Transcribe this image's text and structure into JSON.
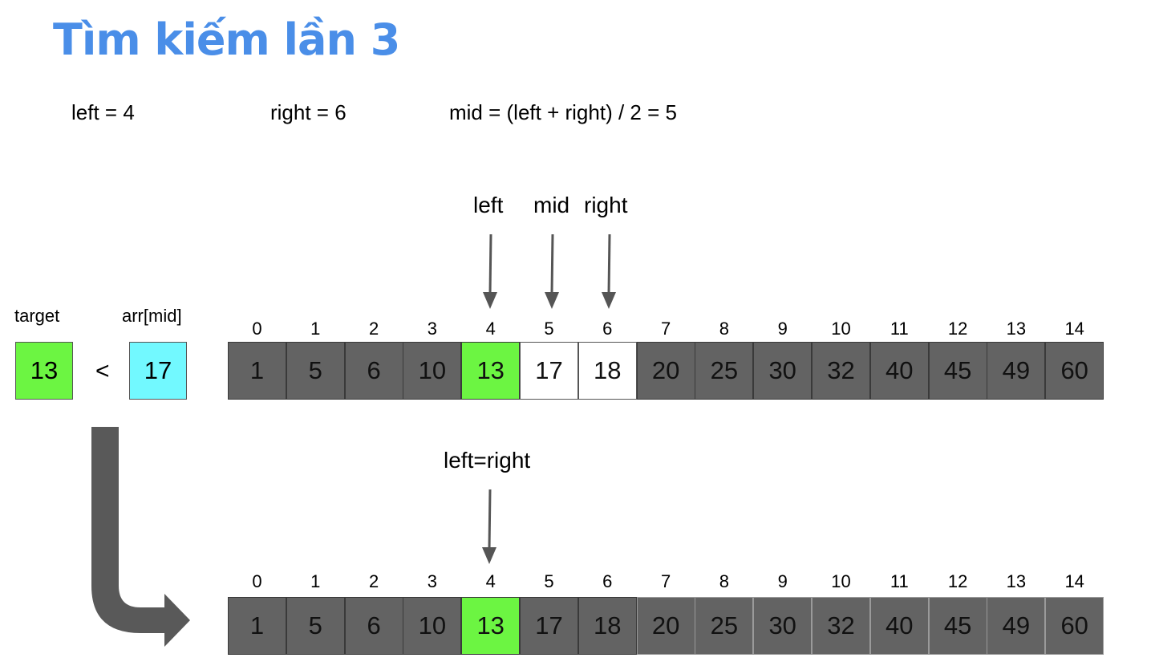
{
  "title": "Tìm kiếm lần 3",
  "equations": {
    "left": "left = 4",
    "right": "right = 6",
    "mid": "mid = (left + right) / 2 = 5"
  },
  "pointers_top": {
    "left": "left",
    "mid": "mid",
    "right": "right"
  },
  "pointer_bottom": "left=right",
  "compare": {
    "target_label": "target",
    "target_value": "13",
    "operator": "<",
    "arr_mid_label": "arr[mid]",
    "arr_mid_value": "17"
  },
  "indices": [
    "0",
    "1",
    "2",
    "3",
    "4",
    "5",
    "6",
    "7",
    "8",
    "9",
    "10",
    "11",
    "12",
    "13",
    "14"
  ],
  "values": [
    "1",
    "5",
    "6",
    "10",
    "13",
    "17",
    "18",
    "20",
    "25",
    "30",
    "32",
    "40",
    "45",
    "49",
    "60"
  ],
  "colors": {
    "title": "#4a8ee8",
    "inactive_cell": "#636363",
    "highlight_cell": "#6cf542",
    "mid_value_box": "#72f9ff",
    "arrow": "#555555"
  }
}
